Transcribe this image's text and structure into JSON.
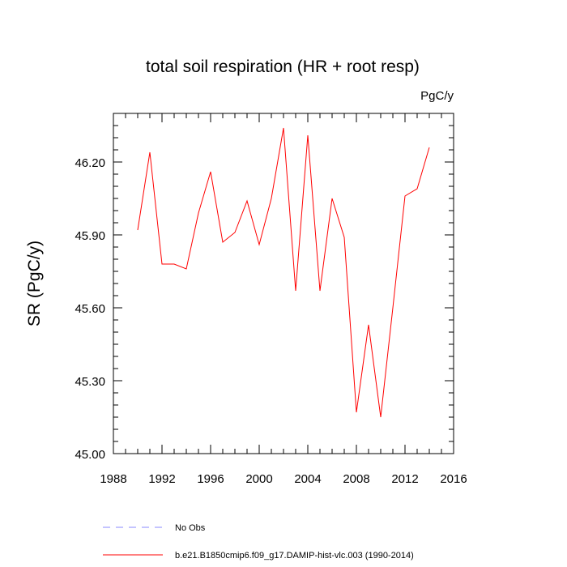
{
  "chart_data": {
    "type": "line",
    "title": "total soil respiration (HR + root resp)",
    "units_label": "PgC/y",
    "xlabel": "",
    "ylabel": "SR  (PgC/y)",
    "xlim": [
      1988,
      2016
    ],
    "ylim": [
      45.0,
      46.4
    ],
    "x_ticks": [
      1988,
      1992,
      1996,
      2000,
      2004,
      2008,
      2012,
      2016
    ],
    "x_tick_labels": [
      "1988",
      "1992",
      "1996",
      "2000",
      "2004",
      "2008",
      "2012",
      "2016"
    ],
    "x_minor_step": 1,
    "y_ticks": [
      45.0,
      45.3,
      45.6,
      45.9,
      46.2
    ],
    "y_tick_labels": [
      "45.00",
      "45.30",
      "45.60",
      "45.90",
      "46.20"
    ],
    "y_minor_step": 0.05,
    "grid": false,
    "series": [
      {
        "name": "b.e21.B1850cmip6.f09_g17.DAMIP-hist-vlc.003 (1990-2014)",
        "color": "#ff0000",
        "style": "solid",
        "x": [
          1990,
          1991,
          1992,
          1993,
          1994,
          1995,
          1996,
          1997,
          1998,
          1999,
          2000,
          2001,
          2002,
          2003,
          2004,
          2005,
          2006,
          2007,
          2008,
          2009,
          2010,
          2011,
          2012,
          2013,
          2014
        ],
        "y": [
          45.92,
          46.24,
          45.78,
          45.78,
          45.76,
          45.99,
          46.16,
          45.87,
          45.91,
          46.04,
          45.86,
          46.05,
          46.34,
          45.67,
          46.31,
          45.67,
          46.05,
          45.89,
          45.17,
          45.53,
          45.15,
          45.6,
          46.06,
          46.09,
          46.26
        ]
      }
    ],
    "legend": {
      "placement": "bottom-left",
      "entries": [
        {
          "label": "No Obs",
          "color": "#8888ff",
          "style": "dashed"
        },
        {
          "label": "b.e21.B1850cmip6.f09_g17.DAMIP-hist-vlc.003 (1990-2014)",
          "color": "#ff0000",
          "style": "solid"
        }
      ]
    }
  }
}
